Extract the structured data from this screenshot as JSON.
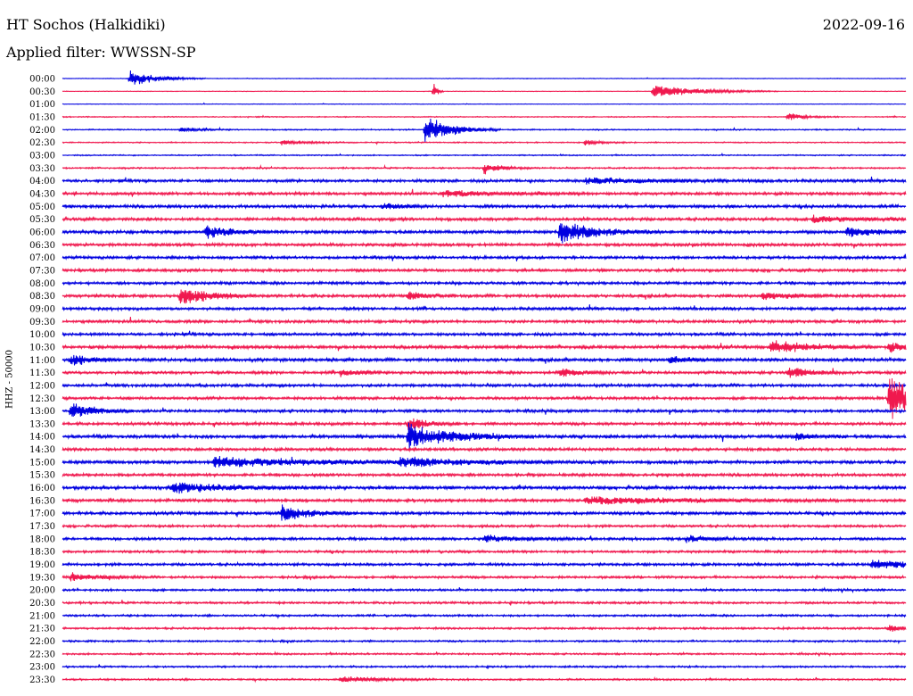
{
  "header": {
    "station": "HT Sochos (Halkidiki)",
    "date": "2022-09-16",
    "filter": "Applied filter: WWSSN-SP"
  },
  "chart_data": {
    "type": "line",
    "ylabel": "HHZ - 50000",
    "row_labels": [
      "00:00",
      "00:30",
      "01:00",
      "01:30",
      "02:00",
      "02:30",
      "03:00",
      "03:30",
      "04:00",
      "04:30",
      "05:00",
      "05:30",
      "06:00",
      "06:30",
      "07:00",
      "07:30",
      "08:00",
      "08:30",
      "09:00",
      "09:30",
      "10:00",
      "10:30",
      "11:00",
      "11:30",
      "12:00",
      "12:30",
      "13:00",
      "13:30",
      "14:00",
      "14:30",
      "15:00",
      "15:30",
      "16:00",
      "16:30",
      "17:00",
      "17:30",
      "18:00",
      "18:30",
      "19:00",
      "19:30",
      "20:00",
      "20:30",
      "21:00",
      "21:30",
      "22:00",
      "22:30",
      "23:00",
      "23:30"
    ],
    "colors": {
      "even_rows": "#0000e0",
      "odd_rows": "#f0184e"
    },
    "noise_level": [
      0.3,
      0.3,
      0.3,
      0.5,
      0.6,
      0.6,
      0.6,
      0.8,
      1.4,
      1.4,
      1.5,
      1.5,
      1.5,
      1.5,
      1.4,
      1.4,
      1.4,
      1.5,
      1.4,
      1.4,
      1.4,
      1.6,
      1.6,
      1.4,
      1.4,
      1.4,
      1.4,
      1.4,
      1.6,
      1.4,
      1.6,
      1.4,
      1.6,
      1.5,
      1.5,
      1.2,
      1.3,
      1.2,
      1.3,
      1.2,
      1.1,
      1.1,
      1.0,
      1.0,
      0.9,
      0.9,
      0.9,
      0.9
    ],
    "events": [
      {
        "row": 0,
        "t": 0.08,
        "amp": 11,
        "dur": 0.03
      },
      {
        "row": 1,
        "t": 0.7,
        "amp": 9,
        "dur": 0.05
      },
      {
        "row": 1,
        "t": 0.44,
        "amp": 14,
        "dur": 0.004
      },
      {
        "row": 3,
        "t": 0.86,
        "amp": 5,
        "dur": 0.02
      },
      {
        "row": 4,
        "t": 0.43,
        "amp": 18,
        "dur": 0.03
      },
      {
        "row": 4,
        "t": 0.14,
        "amp": 3,
        "dur": 0.02
      },
      {
        "row": 5,
        "t": 0.26,
        "amp": 3,
        "dur": 0.03
      },
      {
        "row": 5,
        "t": 0.62,
        "amp": 3,
        "dur": 0.02
      },
      {
        "row": 7,
        "t": 0.5,
        "amp": 7,
        "dur": 0.02
      },
      {
        "row": 8,
        "t": 0.62,
        "amp": 4,
        "dur": 0.08
      },
      {
        "row": 9,
        "t": 0.45,
        "amp": 4,
        "dur": 0.06
      },
      {
        "row": 10,
        "t": 0.38,
        "amp": 4,
        "dur": 0.02
      },
      {
        "row": 11,
        "t": 0.89,
        "amp": 4,
        "dur": 0.05
      },
      {
        "row": 12,
        "t": 0.17,
        "amp": 9,
        "dur": 0.03
      },
      {
        "row": 12,
        "t": 0.59,
        "amp": 14,
        "dur": 0.04
      },
      {
        "row": 12,
        "t": 0.93,
        "amp": 7,
        "dur": 0.03
      },
      {
        "row": 17,
        "t": 0.14,
        "amp": 13,
        "dur": 0.03
      },
      {
        "row": 17,
        "t": 0.41,
        "amp": 5,
        "dur": 0.02
      },
      {
        "row": 17,
        "t": 0.83,
        "amp": 5,
        "dur": 0.03
      },
      {
        "row": 21,
        "t": 0.84,
        "amp": 9,
        "dur": 0.04
      },
      {
        "row": 21,
        "t": 0.98,
        "amp": 7,
        "dur": 0.02
      },
      {
        "row": 22,
        "t": 0.01,
        "amp": 8,
        "dur": 0.02
      },
      {
        "row": 22,
        "t": 0.72,
        "amp": 5,
        "dur": 0.02
      },
      {
        "row": 23,
        "t": 0.33,
        "amp": 5,
        "dur": 0.02
      },
      {
        "row": 23,
        "t": 0.59,
        "amp": 6,
        "dur": 0.02
      },
      {
        "row": 23,
        "t": 0.86,
        "amp": 9,
        "dur": 0.02
      },
      {
        "row": 25,
        "t": 0.98,
        "amp": 30,
        "dur": 0.03
      },
      {
        "row": 26,
        "t": 0.01,
        "amp": 9,
        "dur": 0.03
      },
      {
        "row": 27,
        "t": 0.41,
        "amp": 8,
        "dur": 0.02
      },
      {
        "row": 28,
        "t": 0.41,
        "amp": 16,
        "dur": 0.05
      },
      {
        "row": 28,
        "t": 0.87,
        "amp": 5,
        "dur": 0.02
      },
      {
        "row": 30,
        "t": 0.18,
        "amp": 6,
        "dur": 0.12
      },
      {
        "row": 30,
        "t": 0.4,
        "amp": 6,
        "dur": 0.07
      },
      {
        "row": 32,
        "t": 0.13,
        "amp": 7,
        "dur": 0.06
      },
      {
        "row": 33,
        "t": 0.62,
        "amp": 5,
        "dur": 0.1
      },
      {
        "row": 34,
        "t": 0.26,
        "amp": 10,
        "dur": 0.03
      },
      {
        "row": 36,
        "t": 0.5,
        "amp": 4,
        "dur": 0.04
      },
      {
        "row": 36,
        "t": 0.74,
        "amp": 4,
        "dur": 0.03
      },
      {
        "row": 38,
        "t": 0.96,
        "amp": 6,
        "dur": 0.05
      },
      {
        "row": 39,
        "t": 0.01,
        "amp": 5,
        "dur": 0.03
      },
      {
        "row": 43,
        "t": 0.98,
        "amp": 4,
        "dur": 0.02
      },
      {
        "row": 47,
        "t": 0.33,
        "amp": 4,
        "dur": 0.04
      }
    ]
  }
}
